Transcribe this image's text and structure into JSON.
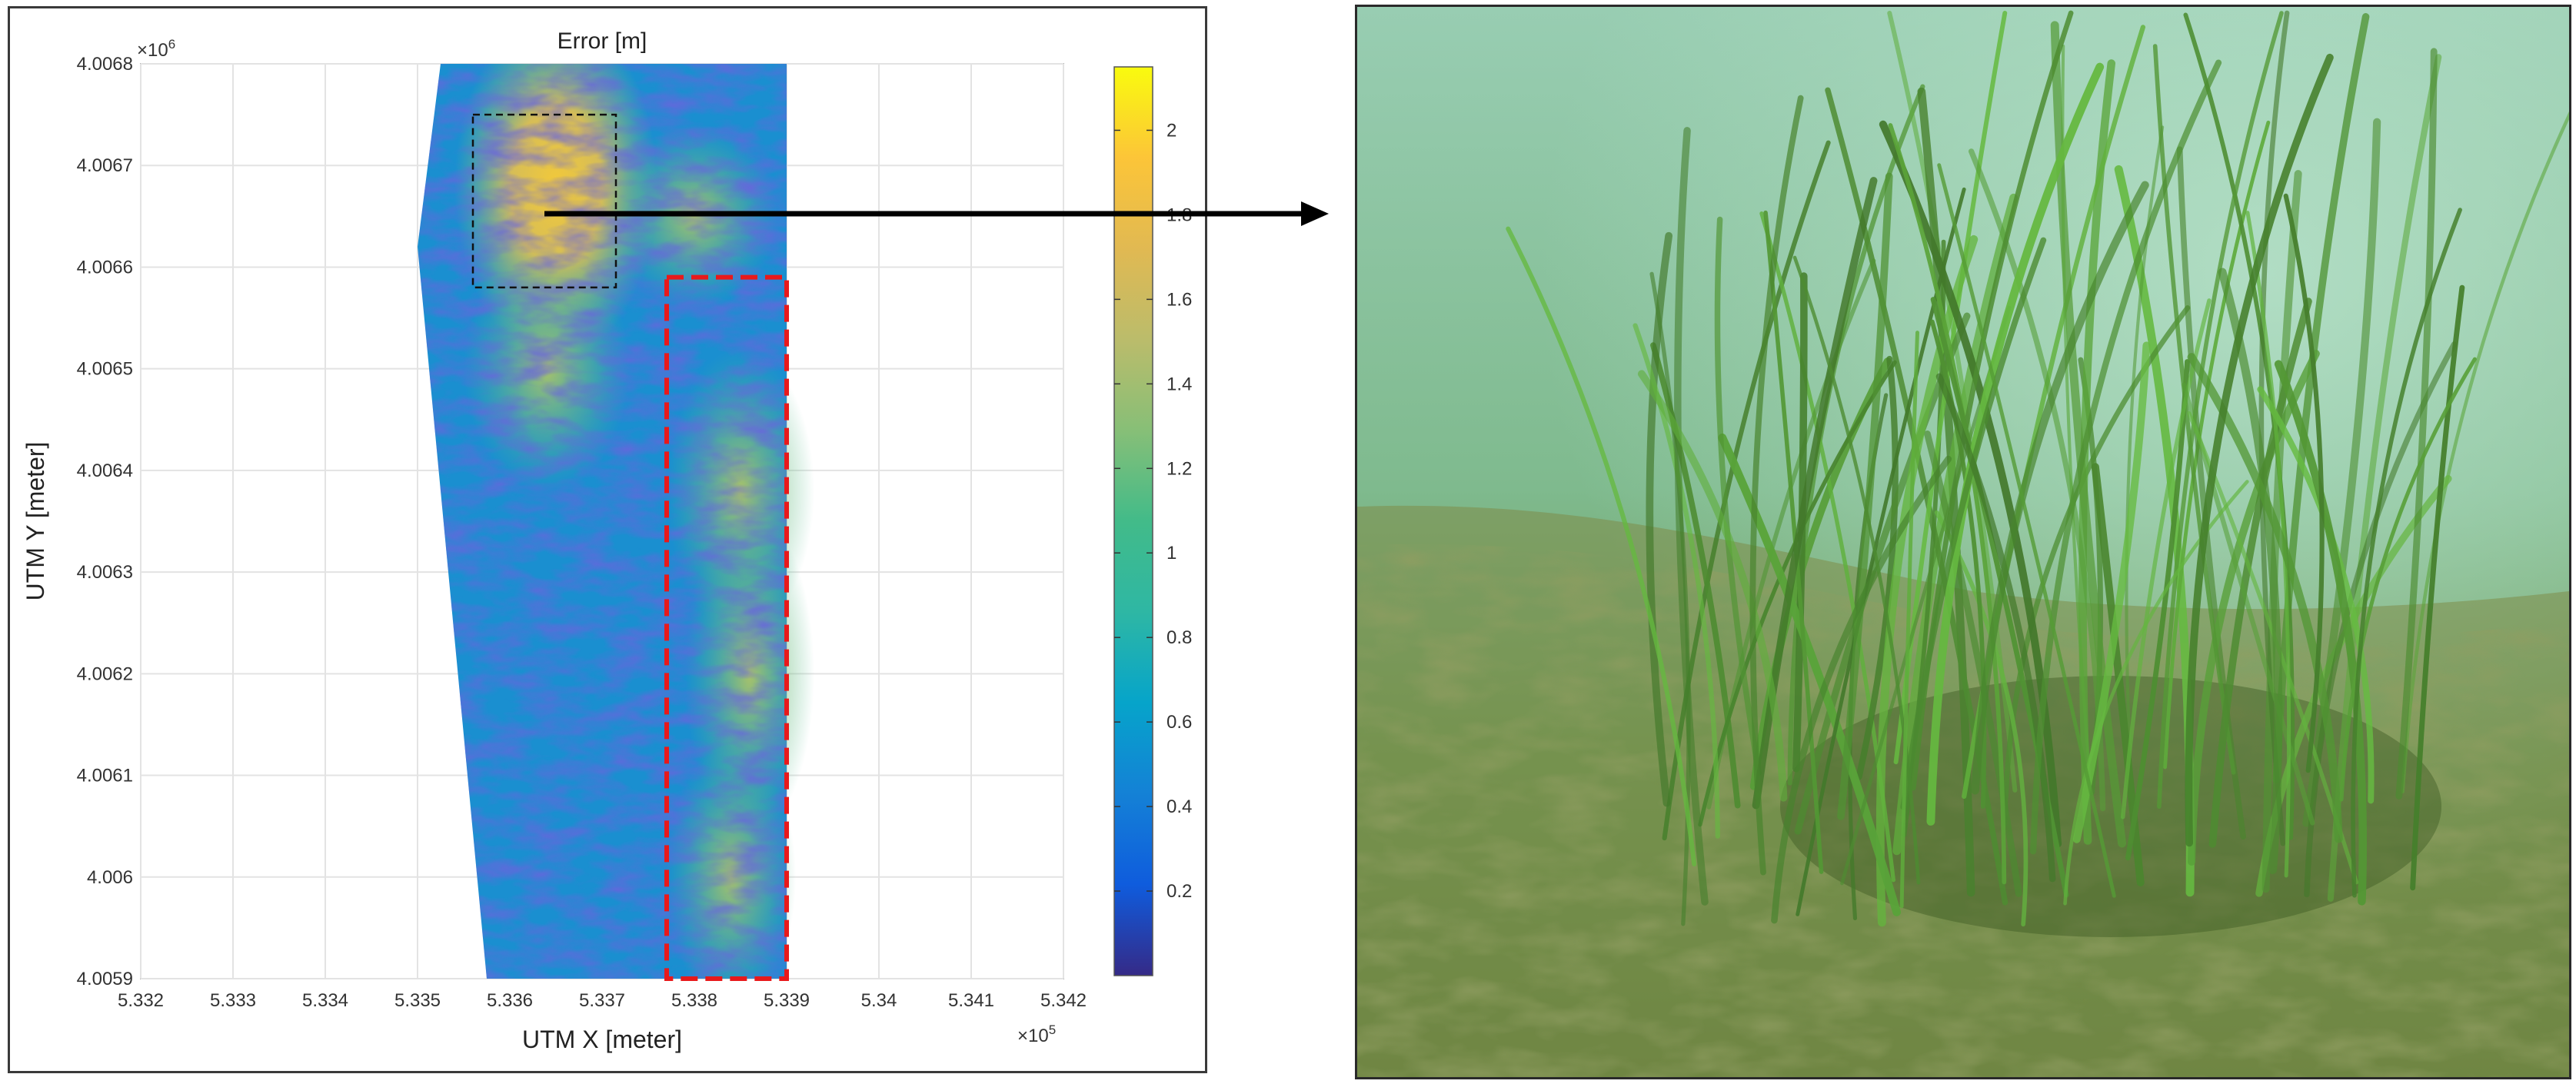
{
  "chart_data": {
    "type": "heatmap",
    "title": "Error [m]",
    "xlabel": "UTM X [meter]",
    "ylabel": "UTM Y [meter]",
    "x_ticks": [
      "5.332",
      "5.333",
      "5.334",
      "5.335",
      "5.336",
      "5.337",
      "5.338",
      "5.339",
      "5.34",
      "5.341",
      "5.342"
    ],
    "x_multiplier": "×10",
    "x_exponent": "5",
    "xlim": [
      533200,
      534200
    ],
    "y_ticks": [
      "4.0059",
      "4.006",
      "4.0061",
      "4.0062",
      "4.0063",
      "4.0064",
      "4.0065",
      "4.0066",
      "4.0067",
      "4.0068"
    ],
    "y_multiplier": "×10",
    "y_exponent": "6",
    "ylim": [
      4005900,
      4006800
    ],
    "grid": true,
    "colorbar": {
      "label_ticks": [
        "0.2",
        "0.4",
        "0.6",
        "0.8",
        "1",
        "1.2",
        "1.4",
        "1.6",
        "1.8",
        "2"
      ],
      "min": 0.0,
      "max": 2.15,
      "colormap": "parula"
    },
    "highlight_regions": [
      {
        "name": "zoom-region",
        "style": "black-dashed",
        "x_range": [
          533560,
          533715
        ],
        "y_range": [
          4006580,
          4006750
        ]
      },
      {
        "name": "validation-region",
        "style": "red-dashed",
        "x_range": [
          533770,
          533900
        ],
        "y_range": [
          4005900,
          4006590
        ]
      }
    ],
    "data_extent": {
      "x_min_at_top": 533525,
      "x_min_at_mid": 533500,
      "x_min_at_bottom": 533575,
      "x_max": 533900,
      "y_mid": 4006620
    }
  },
  "photo": {
    "subject": "underwater seagrass bed"
  },
  "colors": {
    "red_box": "#e8191b",
    "black_box": "#111111",
    "arrow": "#000000",
    "water": "#8fc2a4"
  }
}
